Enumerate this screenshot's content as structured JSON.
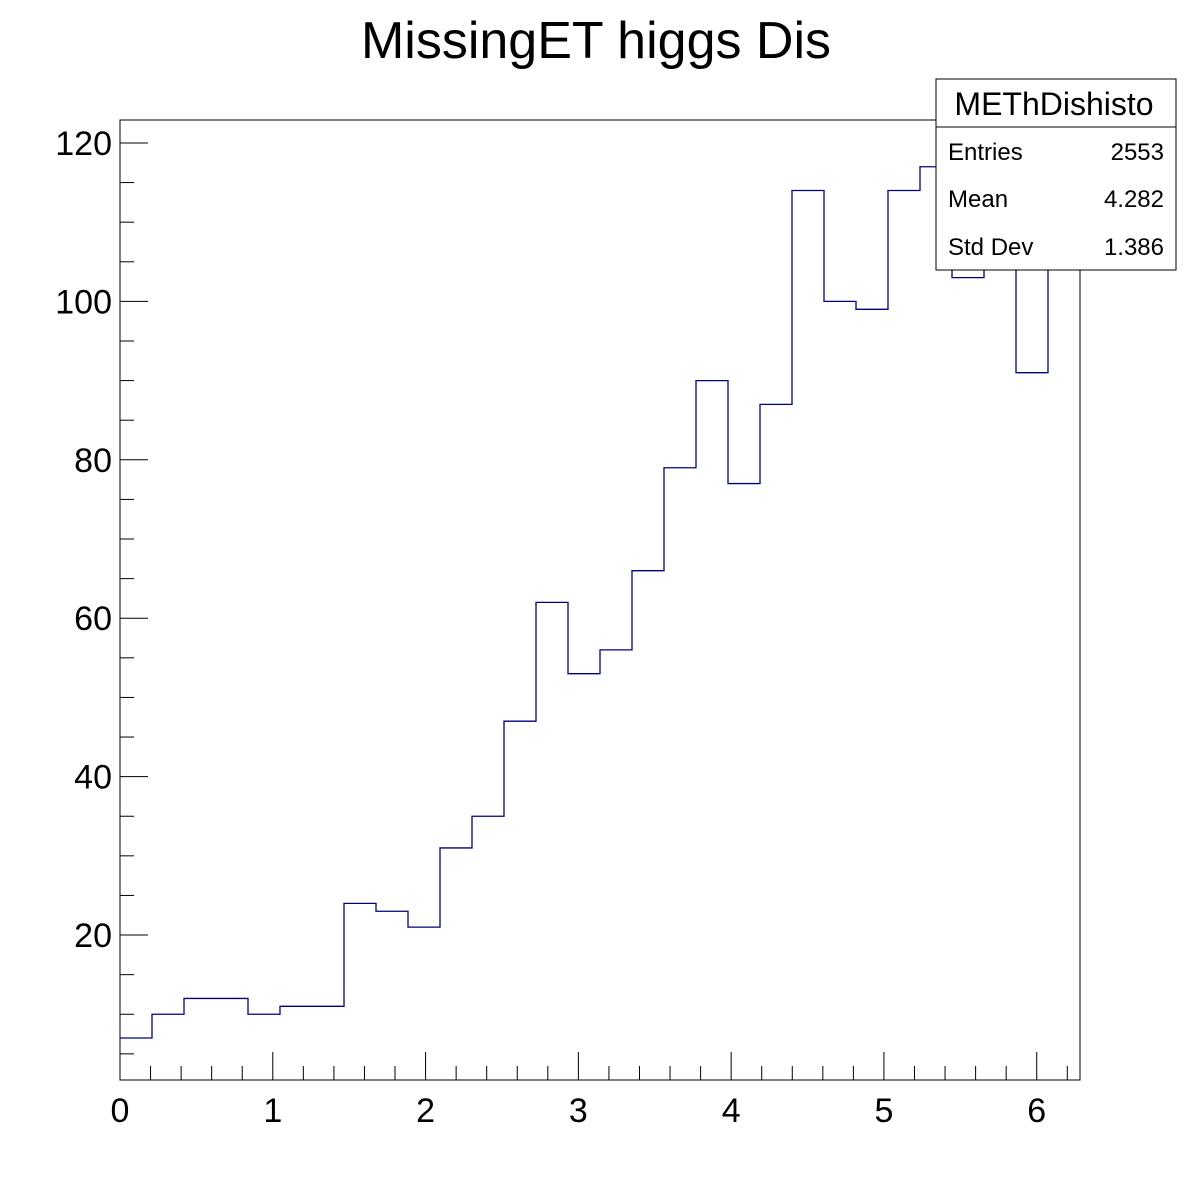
{
  "chart_data": {
    "type": "histogram",
    "title": "MissingET higgs Dis",
    "xlabel": "",
    "ylabel": "",
    "xlim": [
      0,
      6.2832
    ],
    "ylim": [
      1.7,
      122.9
    ],
    "grid": false,
    "line_color": "#000080",
    "bin_edges": [
      0,
      0.2094,
      0.4189,
      0.6283,
      0.8378,
      1.0472,
      1.2566,
      1.4661,
      1.6755,
      1.885,
      2.0944,
      2.3038,
      2.5133,
      2.7227,
      2.9322,
      3.1416,
      3.351,
      3.5605,
      3.7699,
      3.9794,
      4.1888,
      4.3982,
      4.6077,
      4.8171,
      5.0265,
      5.236,
      5.4454,
      5.6549,
      5.8643,
      6.0737,
      6.2832
    ],
    "values": [
      7,
      10,
      12,
      12,
      10,
      11,
      11,
      24,
      23,
      21,
      31,
      35,
      47,
      62,
      53,
      56,
      66,
      79,
      90,
      77,
      87,
      114,
      100,
      99,
      114,
      117,
      103,
      108,
      91,
      121
    ],
    "x_ticks": [
      0,
      1,
      2,
      3,
      4,
      5,
      6
    ],
    "x_tick_labels": [
      "0",
      "1",
      "2",
      "3",
      "4",
      "5",
      "6"
    ],
    "y_ticks": [
      20,
      40,
      60,
      80,
      100,
      120
    ],
    "y_tick_labels": [
      "20",
      "40",
      "60",
      "80",
      "100",
      "120"
    ],
    "stats_box": {
      "name": "METhDishisto",
      "rows": [
        {
          "label": "Entries",
          "value": "2553"
        },
        {
          "label": "Mean",
          "value": "4.282"
        },
        {
          "label": "Std Dev",
          "value": "1.386"
        }
      ],
      "placement": "top-right"
    }
  }
}
